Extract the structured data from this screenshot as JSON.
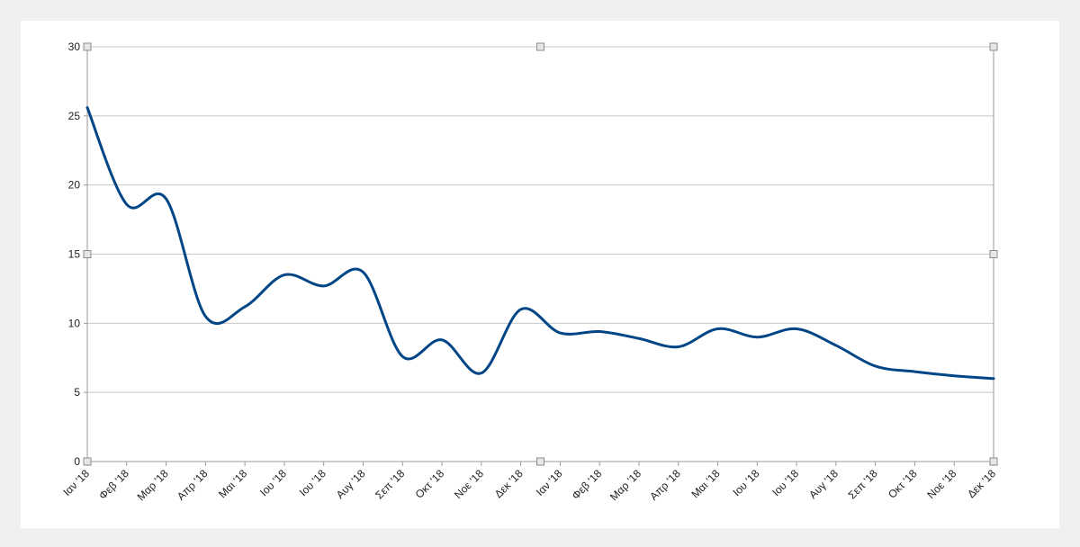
{
  "chart_data": {
    "type": "line",
    "title": "",
    "xlabel": "",
    "ylabel": "",
    "categories": [
      "Ιαν '18",
      "Φεβ '18",
      "Μαρ '18",
      "Απρ '18",
      "Μαι '18",
      "Ιου '18",
      "Ιου '18",
      "Αυγ '18",
      "Σεπ '18",
      "Οκτ '18",
      "Νοε '18",
      "Δεκ '18",
      "Ιαν '18",
      "Φεβ '18",
      "Μαρ '18",
      "Απρ '18",
      "Μαι '18",
      "Ιου '18",
      "Ιου '18",
      "Αυγ '18",
      "Σεπ '18",
      "Οκτ '18",
      "Νοε '18",
      "Δεκ '18"
    ],
    "series": [
      {
        "values": [
          25.6,
          18.6,
          19.0,
          10.5,
          11.2,
          13.5,
          12.7,
          13.7,
          7.6,
          8.8,
          6.4,
          11.0,
          9.3,
          9.4,
          8.9,
          8.3,
          9.6,
          9.0,
          9.6,
          8.4,
          6.9,
          6.5,
          6.2,
          6.0
        ],
        "color": "#004586"
      }
    ],
    "ylim": [
      0,
      30
    ],
    "yticks": [
      0,
      5,
      10,
      15,
      20,
      25,
      30
    ],
    "grid": true,
    "legend": "none"
  },
  "colors": {
    "line": "#004586",
    "grid": "#c8c8c8",
    "background": "#ffffff",
    "page": "#efefef"
  }
}
